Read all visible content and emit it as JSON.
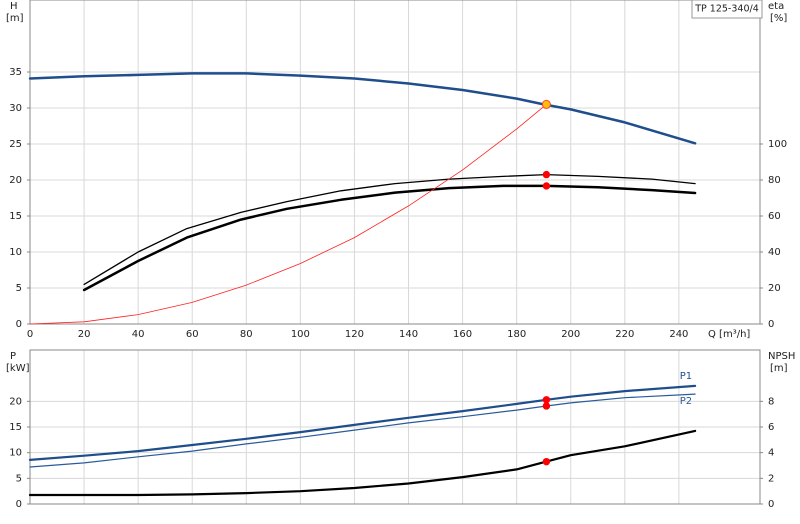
{
  "chart_data": [
    {
      "type": "line",
      "title": "TP 125-340/4",
      "xlabel": "Q [m³/h]",
      "ylabel": "H",
      "yunit": "[m]",
      "y2label": "eta",
      "y2unit": "[%]",
      "xlim": [
        0,
        270
      ],
      "xticks": [
        0,
        20,
        40,
        60,
        80,
        100,
        120,
        140,
        160,
        180,
        200,
        220,
        240
      ],
      "ylim": [
        0,
        45
      ],
      "yticks": [
        0,
        5,
        10,
        15,
        20,
        25,
        30,
        35
      ],
      "y2lim": [
        0,
        180
      ],
      "y2ticks": [
        0,
        20,
        40,
        60,
        80,
        100
      ],
      "grid": true,
      "series": [
        {
          "color": "#1f4e8c",
          "x": [
            0,
            20,
            40,
            60,
            80,
            100,
            120,
            140,
            160,
            180,
            190,
            200,
            220,
            246
          ],
          "values": [
            34.1,
            34.4,
            34.6,
            34.8,
            34.8,
            34.5,
            34.1,
            33.4,
            32.5,
            31.3,
            30.5,
            29.8,
            28.0,
            25.1
          ]
        },
        {
          "color": "#000000",
          "axis": "y2",
          "x": [
            20,
            40,
            58,
            78,
            95,
            115,
            135,
            155,
            175,
            191,
            210,
            230,
            246
          ],
          "values": [
            22,
            40,
            53,
            62,
            68,
            74,
            78,
            80.5,
            82,
            83,
            82,
            80.5,
            78
          ]
        },
        {
          "color": "#000000",
          "axis": "y2",
          "x": [
            20,
            40,
            58,
            78,
            95,
            115,
            135,
            155,
            175,
            191,
            210,
            230,
            246
          ],
          "values": [
            18.9,
            35,
            48,
            58,
            64,
            69,
            73,
            75.5,
            76.7,
            76.7,
            76,
            74.4,
            72.8
          ]
        },
        {
          "color": "#ff2020",
          "x": [
            0,
            20,
            40,
            60,
            80,
            100,
            120,
            140,
            160,
            180,
            191
          ],
          "values": [
            0,
            0.3,
            1.3,
            3.0,
            5.4,
            8.4,
            12.0,
            16.4,
            21.4,
            27.1,
            30.5
          ]
        }
      ],
      "points": [
        {
          "x": 191,
          "y": 30.5,
          "color": "#ffc000"
        },
        {
          "x": 191,
          "y": 83,
          "axis": "y2",
          "color": "#ff0000"
        },
        {
          "x": 191,
          "y": 76.7,
          "axis": "y2",
          "color": "#ff0000"
        }
      ]
    },
    {
      "type": "line",
      "ylabel": "P",
      "yunit": "[kW]",
      "y2label": "NPSH",
      "y2unit": "[m]",
      "xlim": [
        0,
        270
      ],
      "xticks": [
        0,
        20,
        40,
        60,
        80,
        100,
        120,
        140,
        160,
        180,
        200,
        220,
        240
      ],
      "xtick_labels": false,
      "ylim": [
        0,
        30
      ],
      "yticks": [
        0,
        5,
        10,
        15,
        20
      ],
      "y2lim": [
        0,
        12
      ],
      "y2ticks": [
        0,
        2,
        4,
        6,
        8
      ],
      "grid": true,
      "series": [
        {
          "name": "P1",
          "color": "#1f4e8c",
          "x": [
            0,
            20,
            40,
            60,
            80,
            100,
            120,
            140,
            160,
            180,
            191,
            200,
            220,
            246
          ],
          "values": [
            8.6,
            9.4,
            10.3,
            11.5,
            12.7,
            14.0,
            15.4,
            16.8,
            18.1,
            19.5,
            20.3,
            20.9,
            22.0,
            23.0
          ]
        },
        {
          "name": "P2",
          "color": "#2a5a9a",
          "x": [
            0,
            20,
            40,
            60,
            80,
            100,
            120,
            140,
            160,
            180,
            191,
            200,
            220,
            246
          ],
          "values": [
            7.2,
            8.0,
            9.2,
            10.3,
            11.7,
            13.0,
            14.4,
            15.8,
            17.0,
            18.3,
            19.1,
            19.7,
            20.7,
            21.4
          ]
        },
        {
          "color": "#000000",
          "axis": "y2",
          "x": [
            0,
            20,
            40,
            60,
            80,
            100,
            120,
            140,
            160,
            180,
            191,
            200,
            220,
            246
          ],
          "values": [
            0.7,
            0.7,
            0.7,
            0.75,
            0.85,
            1.0,
            1.25,
            1.6,
            2.1,
            2.7,
            3.3,
            3.8,
            4.5,
            5.7
          ]
        }
      ],
      "points": [
        {
          "x": 191,
          "y": 20.3,
          "color": "#ff0000"
        },
        {
          "x": 191,
          "y": 19.1,
          "color": "#ff0000"
        },
        {
          "x": 191,
          "y": 3.3,
          "axis": "y2",
          "color": "#ff0000"
        }
      ]
    }
  ]
}
